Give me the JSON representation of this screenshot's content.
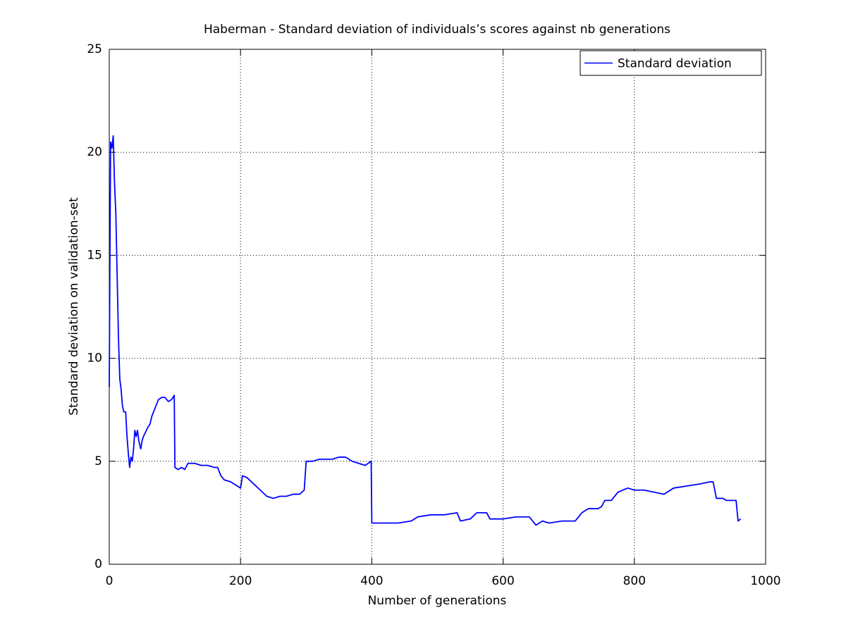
{
  "chart_data": {
    "type": "line",
    "title": "Haberman - Standard deviation of individuals’s scores against nb generations",
    "x_label": "Number of generations",
    "y_label": "Standard deviation on validation-set",
    "x": [
      0,
      1,
      2,
      4,
      6,
      8,
      10,
      12,
      14,
      16,
      18,
      20,
      22,
      25,
      27,
      29,
      31,
      33,
      35,
      37,
      39,
      41,
      43,
      45,
      48,
      50,
      52,
      55,
      58,
      62,
      65,
      70,
      75,
      80,
      85,
      90,
      95,
      99,
      100,
      105,
      110,
      115,
      120,
      130,
      140,
      150,
      160,
      165,
      170,
      175,
      185,
      195,
      200,
      203,
      210,
      220,
      230,
      240,
      250,
      260,
      270,
      280,
      290,
      297,
      300,
      310,
      320,
      330,
      340,
      350,
      360,
      370,
      380,
      390,
      399,
      400,
      420,
      440,
      460,
      470,
      490,
      510,
      530,
      535,
      550,
      560,
      575,
      580,
      600,
      620,
      640,
      650,
      660,
      670,
      690,
      710,
      720,
      730,
      745,
      750,
      755,
      765,
      775,
      790,
      800,
      815,
      830,
      845,
      860,
      880,
      900,
      915,
      920,
      925,
      935,
      940,
      955,
      958,
      962
    ],
    "series": [
      {
        "name": "Standard deviation",
        "color": "#0000ff",
        "values": [
          8.6,
          15,
          20.5,
          20.2,
          20.8,
          18.5,
          17,
          14,
          11,
          9,
          8.5,
          7.7,
          7.4,
          7.4,
          6.2,
          5.4,
          4.7,
          5.2,
          5.0,
          5.6,
          6.5,
          6.2,
          6.5,
          6.0,
          5.6,
          6.0,
          6.2,
          6.4,
          6.6,
          6.8,
          7.2,
          7.6,
          8.0,
          8.1,
          8.1,
          7.9,
          8.0,
          8.2,
          4.7,
          4.6,
          4.7,
          4.6,
          4.9,
          4.9,
          4.8,
          4.8,
          4.7,
          4.7,
          4.3,
          4.1,
          4.0,
          3.8,
          3.7,
          4.3,
          4.2,
          3.9,
          3.6,
          3.3,
          3.2,
          3.3,
          3.3,
          3.4,
          3.4,
          3.6,
          5.0,
          5.0,
          5.1,
          5.1,
          5.1,
          5.2,
          5.2,
          5.0,
          4.9,
          4.8,
          5.0,
          2.0,
          2.0,
          2.0,
          2.1,
          2.3,
          2.4,
          2.4,
          2.5,
          2.1,
          2.2,
          2.5,
          2.5,
          2.2,
          2.2,
          2.3,
          2.3,
          1.9,
          2.1,
          2.0,
          2.1,
          2.1,
          2.5,
          2.7,
          2.7,
          2.8,
          3.1,
          3.1,
          3.5,
          3.7,
          3.6,
          3.6,
          3.5,
          3.4,
          3.7,
          3.8,
          3.9,
          4.0,
          4.0,
          3.2,
          3.2,
          3.1,
          3.1,
          2.1,
          2.2
        ]
      }
    ],
    "xlim": [
      0,
      1000
    ],
    "xticks": [
      0,
      200,
      400,
      600,
      800,
      1000
    ],
    "ylim": [
      0,
      25
    ],
    "yticks": [
      0,
      5,
      10,
      15,
      20,
      25
    ],
    "grid": true,
    "legend": "upper right"
  }
}
